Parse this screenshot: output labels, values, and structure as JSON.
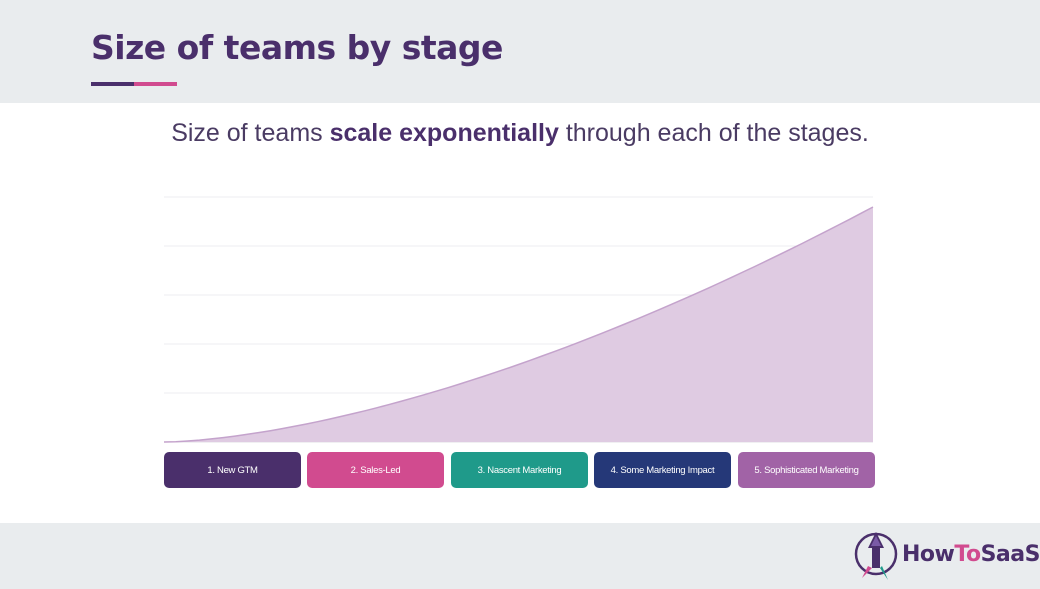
{
  "header": {
    "title": "Size of teams by stage",
    "underline_colors": [
      "#4a2f6b",
      "#d14b8f"
    ]
  },
  "subtitle": {
    "before": "Size of teams ",
    "bold": "scale exponentially",
    "after": " through each of the stages."
  },
  "chart_data": {
    "type": "area",
    "curve": "exponential",
    "grid": true,
    "legend": "none",
    "fill_color": "#dfcbe2",
    "line_color": "#c4a3cc",
    "categories": [
      "1. New GTM",
      "2. Sales-Led",
      "3. Nascent Marketing",
      "4. Some Marketing Impact",
      "5. Sophisticated Marketing"
    ],
    "category_colors": [
      "#4a2f6b",
      "#d14b8f",
      "#1f9a8a",
      "#253878",
      "#a163a6"
    ]
  },
  "logo": {
    "text_how": "How",
    "text_to": "To",
    "text_saas": "SaaS",
    "color_dark": "#4a2f6b",
    "color_accent": "#d14b8f"
  }
}
